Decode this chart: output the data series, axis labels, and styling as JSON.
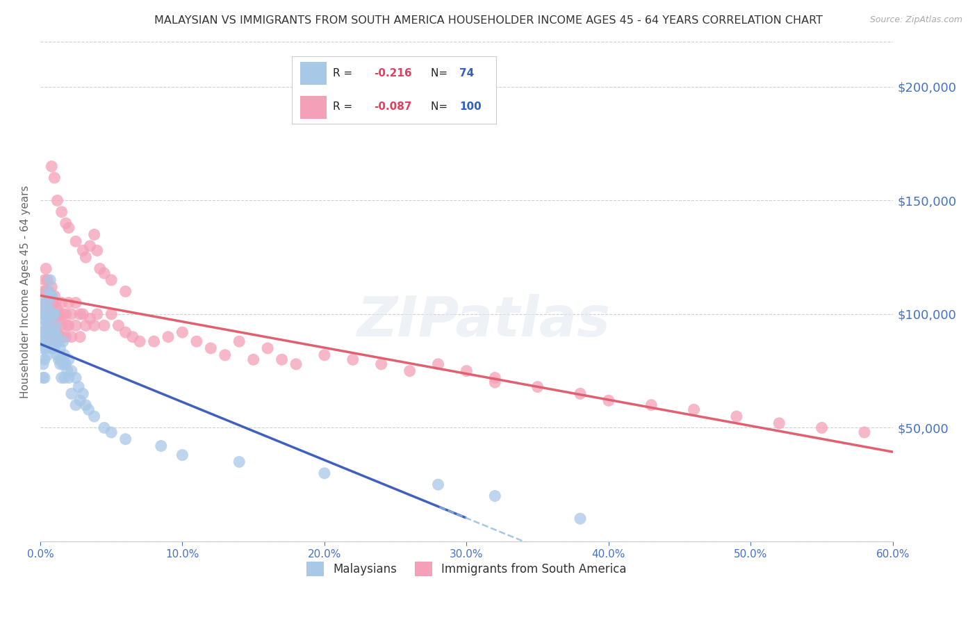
{
  "title": "MALAYSIAN VS IMMIGRANTS FROM SOUTH AMERICA HOUSEHOLDER INCOME AGES 45 - 64 YEARS CORRELATION CHART",
  "source": "Source: ZipAtlas.com",
  "ylabel": "Householder Income Ages 45 - 64 years",
  "yticks": [
    0,
    50000,
    100000,
    150000,
    200000
  ],
  "ytick_labels": [
    "",
    "$50,000",
    "$100,000",
    "$150,000",
    "$200,000"
  ],
  "xmin": 0.0,
  "xmax": 0.6,
  "ymin": 0,
  "ymax": 220000,
  "color_blue": "#a8c8e8",
  "color_pink": "#f4a0b8",
  "color_trend_blue": "#4060c0",
  "color_trend_pink": "#e06070",
  "color_trend_dashed": "#90b8e0",
  "color_axis_labels": "#4472c4",
  "color_title": "#333333",
  "background_color": "#ffffff",
  "malaysians_x": [
    0.001,
    0.001,
    0.001,
    0.002,
    0.002,
    0.002,
    0.002,
    0.002,
    0.003,
    0.003,
    0.003,
    0.003,
    0.004,
    0.004,
    0.004,
    0.005,
    0.005,
    0.005,
    0.005,
    0.006,
    0.006,
    0.006,
    0.007,
    0.007,
    0.007,
    0.007,
    0.008,
    0.008,
    0.008,
    0.008,
    0.009,
    0.009,
    0.009,
    0.01,
    0.01,
    0.01,
    0.011,
    0.011,
    0.012,
    0.012,
    0.013,
    0.013,
    0.014,
    0.014,
    0.015,
    0.015,
    0.016,
    0.016,
    0.017,
    0.017,
    0.018,
    0.019,
    0.02,
    0.02,
    0.022,
    0.022,
    0.025,
    0.025,
    0.027,
    0.028,
    0.03,
    0.032,
    0.034,
    0.038,
    0.045,
    0.05,
    0.06,
    0.085,
    0.1,
    0.14,
    0.2,
    0.28,
    0.32,
    0.38
  ],
  "malaysians_y": [
    105000,
    98000,
    88000,
    100000,
    92000,
    85000,
    78000,
    72000,
    95000,
    88000,
    80000,
    72000,
    100000,
    92000,
    85000,
    105000,
    98000,
    90000,
    82000,
    110000,
    102000,
    95000,
    115000,
    108000,
    100000,
    92000,
    108000,
    100000,
    93000,
    85000,
    100000,
    92000,
    85000,
    100000,
    92000,
    85000,
    95000,
    88000,
    90000,
    82000,
    88000,
    80000,
    85000,
    78000,
    80000,
    72000,
    88000,
    78000,
    82000,
    72000,
    78000,
    75000,
    80000,
    72000,
    75000,
    65000,
    72000,
    60000,
    68000,
    62000,
    65000,
    60000,
    58000,
    55000,
    50000,
    48000,
    45000,
    42000,
    38000,
    35000,
    30000,
    25000,
    20000,
    10000
  ],
  "south_america_x": [
    0.002,
    0.002,
    0.002,
    0.003,
    0.003,
    0.004,
    0.004,
    0.004,
    0.005,
    0.005,
    0.005,
    0.006,
    0.006,
    0.006,
    0.007,
    0.007,
    0.008,
    0.008,
    0.008,
    0.009,
    0.009,
    0.01,
    0.01,
    0.01,
    0.011,
    0.011,
    0.012,
    0.012,
    0.013,
    0.013,
    0.014,
    0.015,
    0.015,
    0.016,
    0.016,
    0.018,
    0.018,
    0.019,
    0.02,
    0.02,
    0.022,
    0.022,
    0.025,
    0.025,
    0.028,
    0.028,
    0.03,
    0.032,
    0.035,
    0.038,
    0.04,
    0.045,
    0.05,
    0.055,
    0.06,
    0.065,
    0.07,
    0.08,
    0.09,
    0.1,
    0.11,
    0.12,
    0.13,
    0.14,
    0.15,
    0.16,
    0.17,
    0.18,
    0.2,
    0.22,
    0.24,
    0.26,
    0.28,
    0.3,
    0.32,
    0.35,
    0.38,
    0.4,
    0.43,
    0.46,
    0.49,
    0.52,
    0.55,
    0.58,
    0.008,
    0.01,
    0.012,
    0.015,
    0.018,
    0.02,
    0.025,
    0.03,
    0.032,
    0.035,
    0.038,
    0.04,
    0.042,
    0.045,
    0.05,
    0.06,
    0.32
  ],
  "south_america_y": [
    110000,
    102000,
    92000,
    115000,
    105000,
    120000,
    110000,
    100000,
    115000,
    105000,
    95000,
    110000,
    100000,
    90000,
    108000,
    98000,
    112000,
    102000,
    92000,
    105000,
    95000,
    108000,
    98000,
    88000,
    105000,
    95000,
    102000,
    92000,
    100000,
    90000,
    98000,
    105000,
    95000,
    100000,
    90000,
    100000,
    90000,
    95000,
    105000,
    95000,
    100000,
    90000,
    105000,
    95000,
    100000,
    90000,
    100000,
    95000,
    98000,
    95000,
    100000,
    95000,
    100000,
    95000,
    92000,
    90000,
    88000,
    88000,
    90000,
    92000,
    88000,
    85000,
    82000,
    88000,
    80000,
    85000,
    80000,
    78000,
    82000,
    80000,
    78000,
    75000,
    78000,
    75000,
    72000,
    68000,
    65000,
    62000,
    60000,
    58000,
    55000,
    52000,
    50000,
    48000,
    165000,
    160000,
    150000,
    145000,
    140000,
    138000,
    132000,
    128000,
    125000,
    130000,
    135000,
    128000,
    120000,
    118000,
    115000,
    110000,
    70000
  ]
}
